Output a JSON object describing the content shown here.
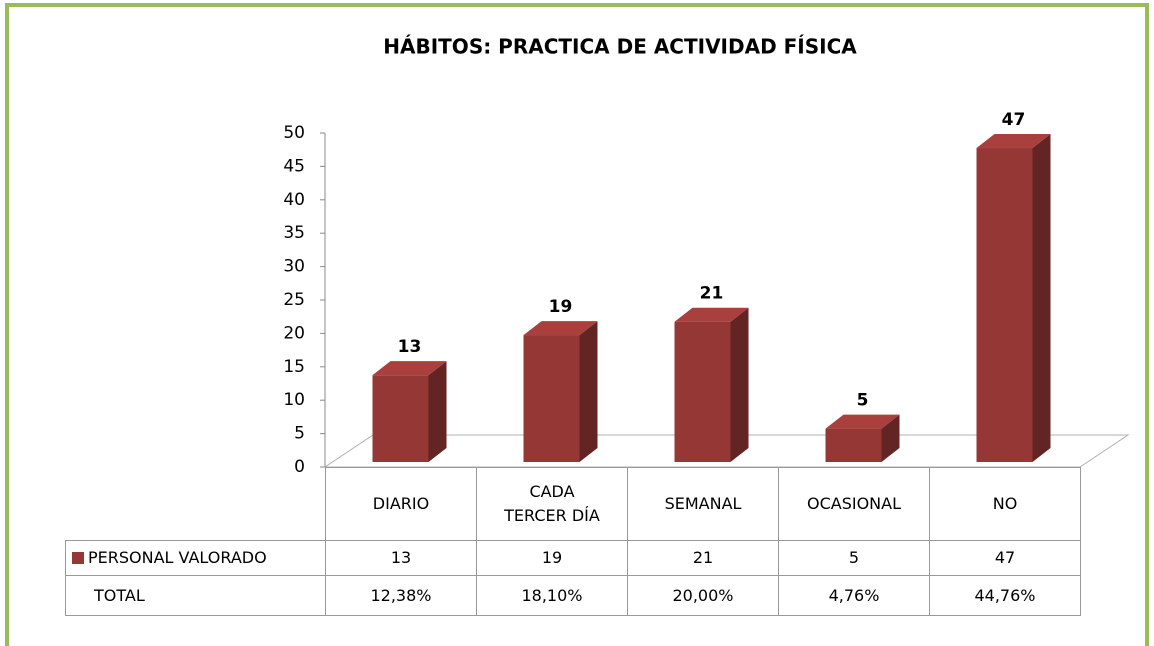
{
  "chart_data": {
    "type": "bar3d",
    "title": "HÁBITOS: PRACTICA DE ACTIVIDAD FÍSICA",
    "categories": [
      "DIARIO",
      "CADA TERCER DÍA",
      "SEMANAL",
      "OCASIONAL",
      "NO"
    ],
    "series": [
      {
        "name": "PERSONAL VALORADO",
        "color": "#953735",
        "values": [
          13,
          19,
          21,
          5,
          47
        ]
      }
    ],
    "total_row": {
      "name": "TOTAL",
      "cells": [
        "12,38%",
        "18,10%",
        "20,00%",
        "4,76%",
        "44,76%"
      ]
    },
    "ylim": [
      0,
      50
    ],
    "yticks": [
      0,
      5,
      10,
      15,
      20,
      25,
      30,
      35,
      40,
      45,
      50
    ]
  }
}
